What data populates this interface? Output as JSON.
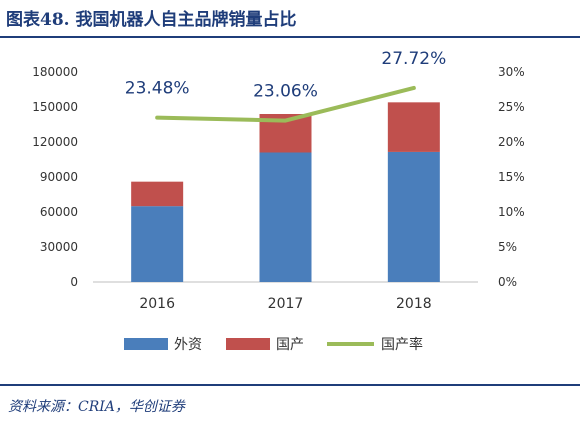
{
  "header": {
    "title": "图表48.  我国机器人自主品牌销量占比"
  },
  "footer": {
    "source": "资料来源：CRIA，华创证券"
  },
  "colors": {
    "foreign": "#4a7ebb",
    "domestic": "#c0504d",
    "rate": "#9bbb59",
    "theme": "#1f3d7a"
  },
  "chart_data": {
    "type": "bar",
    "categories": [
      "2016",
      "2017",
      "2018"
    ],
    "series": [
      {
        "name": "外资",
        "kind": "bar",
        "stack": "sales",
        "values": [
          65000,
          111000,
          111500
        ]
      },
      {
        "name": "国产",
        "kind": "bar",
        "stack": "sales",
        "values": [
          21000,
          33000,
          42500
        ]
      },
      {
        "name": "国产率",
        "kind": "line",
        "axis": "right",
        "values": [
          23.48,
          23.06,
          27.72
        ],
        "labels": [
          "23.48%",
          "23.06%",
          "27.72%"
        ]
      }
    ],
    "left_axis": {
      "ylim": [
        0,
        180000
      ],
      "ticks": [
        "0",
        "30000",
        "60000",
        "90000",
        "120000",
        "150000",
        "180000"
      ]
    },
    "right_axis": {
      "ylim": [
        0,
        30
      ],
      "ticks": [
        "0%",
        "5%",
        "10%",
        "15%",
        "20%",
        "25%",
        "30%"
      ]
    },
    "legend": {
      "position": "bottom"
    },
    "grid": false
  }
}
